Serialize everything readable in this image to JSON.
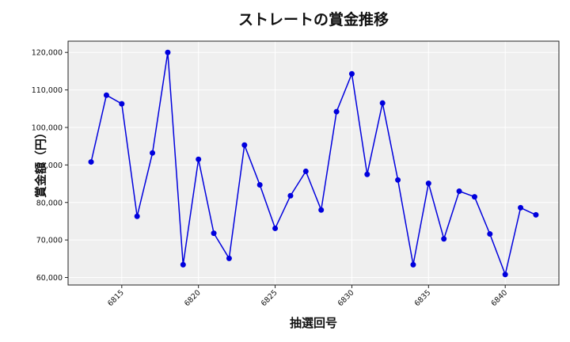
{
  "chart_data": {
    "type": "line",
    "title": "ストレートの賞金推移",
    "xlabel": "抽選回号",
    "ylabel": "賞金額（円）",
    "x": [
      6813,
      6814,
      6815,
      6816,
      6817,
      6818,
      6819,
      6820,
      6821,
      6822,
      6823,
      6824,
      6825,
      6826,
      6827,
      6828,
      6829,
      6830,
      6831,
      6832,
      6833,
      6834,
      6835,
      6836,
      6837,
      6838,
      6839,
      6840,
      6841,
      6842
    ],
    "series": [
      {
        "name": "ストレート",
        "color": "#0000dd",
        "values": [
          90800,
          108600,
          106300,
          76300,
          93200,
          120000,
          63400,
          91500,
          71800,
          65100,
          95300,
          84700,
          73100,
          81800,
          88300,
          78000,
          104200,
          114300,
          87500,
          106500,
          86000,
          63400,
          85100,
          70300,
          83000,
          81500,
          71600,
          60800,
          78600,
          76700
        ]
      }
    ],
    "xticks": [
      6815,
      6820,
      6825,
      6830,
      6835,
      6840
    ],
    "yticks": [
      60000,
      70000,
      80000,
      90000,
      100000,
      110000,
      120000
    ],
    "ytick_labels": [
      "60,000",
      "70,000",
      "80,000",
      "90,000",
      "100,000",
      "110,000",
      "120,000"
    ],
    "xlim": [
      6811.5,
      6843.5
    ],
    "ylim": [
      58000,
      123000
    ],
    "grid": true,
    "background": "#efefef"
  }
}
